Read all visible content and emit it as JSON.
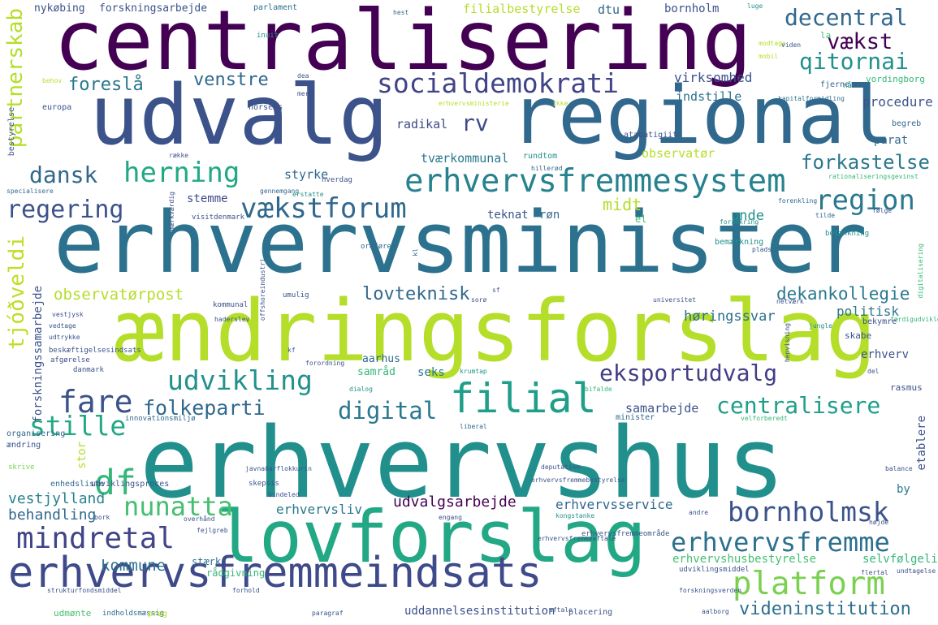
{
  "palette": {
    "dark_purple": "#440154",
    "indigo": "#3b528b",
    "slate": "#31688e",
    "teal": "#21918c",
    "green": "#35b779",
    "lime": "#b5de2b",
    "light_green": "#7ad151",
    "background": "#ffffff"
  },
  "words": [
    "centralisering",
    "udvalg",
    "regional",
    "erhvervsminister",
    "ændringsforslag",
    "erhvervshus",
    "lovforslag",
    "erhvervsfremmeindsats",
    "erhvervsfremmesystem",
    "socialdemokrati",
    "vækstforum",
    "region",
    "filial",
    "platform",
    "mindretal",
    "erhvervsfremme",
    "bornholmsk",
    "udvikling",
    "fare",
    "folkeparti",
    "digital",
    "centralisere",
    "stille",
    "df",
    "nunatta",
    "eksportudvalg",
    "dansk",
    "herning",
    "regering",
    "qitornai",
    "decentral",
    "vækst",
    "venstre",
    "foreslå",
    "rv",
    "forkastelse",
    "partnerskab",
    "tjóðveldi",
    "observatørpost",
    "lovteknisk",
    "dekankollegie",
    "videninstitution",
    "kommune",
    "behandling",
    "vestjylland",
    "udvalgsarbejde",
    "erhvervsservice",
    "erhvervsliv",
    "samarbejde",
    "høringssvar",
    "politisk",
    "procedure",
    "indstille",
    "virksomhed",
    "radikal",
    "tværkommunal",
    "observatør",
    "styrke",
    "stemme",
    "teknat",
    "røn",
    "midt",
    "unde",
    "filialbestyrelse",
    "forskningsarbejde",
    "nykøbing",
    "parlament",
    "dtu",
    "bornholm",
    "erhvervshusbestyrelse",
    "selvfølgelig",
    "erhverv",
    "samråd",
    "seks",
    "forskningssamarbejde",
    "uddannelsesinstitution",
    "etablere",
    "stor",
    "by",
    "rådgivning",
    "stærk",
    "rasmus",
    "parat",
    "la",
    "hest",
    "luge",
    "inuit",
    "vordingborg",
    "fjerne",
    "nå",
    "begreb",
    "kapitalformidling",
    "rationaliseringsgevinst",
    "horsens",
    "europa",
    "bestyrelse",
    "specialisere",
    "afgørelse",
    "udtrykke",
    "vedtage",
    "beskæftigelsesindsats",
    "vestjysk",
    "organisering",
    "ændring",
    "skrive",
    "enhedsliste",
    "udviklingsproces",
    "indholdsmæssig",
    "udmønte",
    "el",
    "rundtom",
    "hillerød",
    "hverdag",
    "ataqatigiit",
    "gennemgang",
    "erstatte",
    "forenkling",
    "forankring",
    "følge",
    "tilde",
    "betænkning",
    "bemærkning",
    "ordfører",
    "plads",
    "digitalisering",
    "kl",
    "sf",
    "sorø",
    "universitet",
    "umulig",
    "kommunal",
    "netværk",
    "færdigudvikle",
    "bekymre",
    "skabe",
    "jungle",
    "henvisning",
    "kf",
    "forordning",
    "aarhus",
    "krumtap",
    "del",
    "danmark",
    "dialog",
    "bifalde",
    "innovationsmiljø",
    "liberal",
    "minister",
    "velforberedt",
    "skepsis",
    "bindeled",
    "deputation",
    "erhvervsfremmebestyrelse",
    "balance",
    "bork",
    "overhånd",
    "fejlgreb",
    "engang",
    "kongstanke",
    "andre",
    "højde",
    "erhvervsfremmeområde",
    "strukturfondsmiddel",
    "forhold",
    "udviklingsmiddel",
    "flertal",
    "undtagelse",
    "forskningsverden",
    "paragraf",
    "aftale",
    "placering",
    "aalborg",
    "erhvervsfremmeaftale",
    "prøg",
    "javnaðarflokkurin",
    "behov",
    "dea",
    "mere",
    "erhvervsministerie",
    "ikke",
    "række",
    "modtage",
    "mobil",
    "viden",
    "mærkværdig",
    "visitdenmark",
    "offshoreindustri",
    "haderslev",
    "svække",
    "midtvest",
    "malou",
    "mundtlig",
    "lunderskov",
    "odense",
    "aktør",
    "erhvervsfremmeplatform",
    "ministerium",
    "ønske",
    "tilblivelse",
    "udvise"
  ]
}
